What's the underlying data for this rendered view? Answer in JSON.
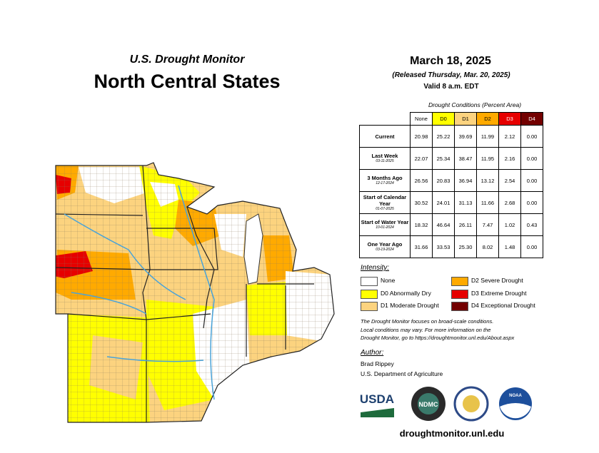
{
  "header": {
    "subtitle": "U.S. Drought Monitor",
    "title": "North Central States"
  },
  "dates": {
    "map_date": "March 18, 2025",
    "released": "(Released Thursday, Mar. 20, 2025)",
    "valid": "Valid 8 a.m. EDT"
  },
  "table": {
    "caption": "Drought Conditions (Percent Area)",
    "columns": [
      "None",
      "D0",
      "D1",
      "D2",
      "D3",
      "D4"
    ],
    "column_colors": [
      "#ffffff",
      "#ffff00",
      "#fcd37f",
      "#ffaa00",
      "#e60000",
      "#730000"
    ],
    "rows": [
      {
        "label": "Current",
        "values": [
          "20.98",
          "25.22",
          "39.69",
          "11.99",
          "2.12",
          "0.00"
        ]
      },
      {
        "label": "Last Week",
        "date": "03-11-2025",
        "values": [
          "22.07",
          "25.34",
          "38.47",
          "11.95",
          "2.16",
          "0.00"
        ]
      },
      {
        "label": "3 Months Ago",
        "date": "12-17-2024",
        "values": [
          "26.56",
          "20.83",
          "36.94",
          "13.12",
          "2.54",
          "0.00"
        ]
      },
      {
        "label": "Start of Calendar Year",
        "date": "01-07-2025",
        "values": [
          "30.52",
          "24.01",
          "31.13",
          "11.66",
          "2.68",
          "0.00"
        ]
      },
      {
        "label": "Start of Water Year",
        "date": "10-01-2024",
        "values": [
          "18.32",
          "46.64",
          "26.11",
          "7.47",
          "1.02",
          "0.43"
        ]
      },
      {
        "label": "One Year Ago",
        "date": "03-19-2024",
        "values": [
          "31.66",
          "33.53",
          "25.30",
          "8.02",
          "1.48",
          "0.00"
        ]
      }
    ]
  },
  "legend": {
    "title": "Intensity:",
    "items": [
      {
        "label": "None",
        "color": "#ffffff"
      },
      {
        "label": "D0 Abnormally Dry",
        "color": "#ffff00"
      },
      {
        "label": "D1 Moderate Drought",
        "color": "#fcd37f"
      },
      {
        "label": "D2 Severe Drought",
        "color": "#ffaa00"
      },
      {
        "label": "D3 Extreme Drought",
        "color": "#e60000"
      },
      {
        "label": "D4 Exceptional Drought",
        "color": "#730000"
      }
    ]
  },
  "notes": [
    "The Drought Monitor focuses on broad-scale conditions.",
    "Local conditions may vary. For more information on the",
    "Drought Monitor, go to https://droughtmonitor.unl.edu/About.aspx"
  ],
  "author": {
    "title": "Author:",
    "name": "Brad Rippey",
    "organization": "U.S. Department of Agriculture"
  },
  "logos": [
    "USDA",
    "NDMC",
    "NOAA"
  ],
  "url": "droughtmonitor.unl.edu"
}
